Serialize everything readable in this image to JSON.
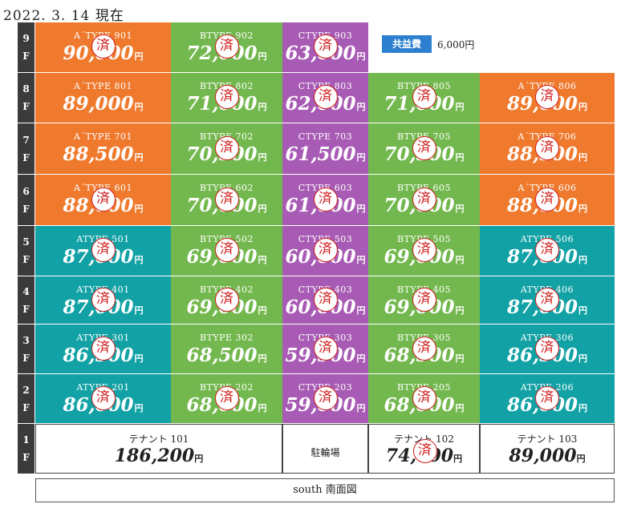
{
  "date_label": "2022. 3. 14 現在",
  "kyoeki": {
    "label": "共益費",
    "value": "6,000円"
  },
  "stamp_char": "済",
  "yen": "円",
  "floors": [
    {
      "label": [
        "9",
        "F"
      ],
      "units": [
        {
          "type": "A´TYPE 901",
          "price": "90,000",
          "color": "orange",
          "col": 0,
          "contracted": true
        },
        {
          "type": "BTYPE 902",
          "price": "72,000",
          "color": "green",
          "col": 1,
          "contracted": true
        },
        {
          "type": "CTYPE 903",
          "price": "63,000",
          "color": "purple",
          "col": 2,
          "contracted": true
        }
      ]
    },
    {
      "label": [
        "8",
        "F"
      ],
      "units": [
        {
          "type": "A´TYPE 801",
          "price": "89,000",
          "color": "orange",
          "col": 0,
          "contracted": false
        },
        {
          "type": "BTYPE 802",
          "price": "71,000",
          "color": "green",
          "col": 1,
          "contracted": true
        },
        {
          "type": "CTYPE 803",
          "price": "62,000",
          "color": "purple",
          "col": 2,
          "contracted": true
        },
        {
          "type": "BTYPE 805",
          "price": "71,000",
          "color": "green",
          "col": 3,
          "contracted": true
        },
        {
          "type": "A´TYPE 806",
          "price": "89,000",
          "color": "orange",
          "col": 4,
          "contracted": true
        }
      ]
    },
    {
      "label": [
        "7",
        "F"
      ],
      "units": [
        {
          "type": "A´TYPE 701",
          "price": "88,500",
          "color": "orange",
          "col": 0,
          "contracted": false
        },
        {
          "type": "BTYPE 702",
          "price": "70,500",
          "color": "green",
          "col": 1,
          "contracted": true
        },
        {
          "type": "CTYPE 703",
          "price": "61,500",
          "color": "purple",
          "col": 2,
          "contracted": false
        },
        {
          "type": "BTYPE 705",
          "price": "70,500",
          "color": "green",
          "col": 3,
          "contracted": true
        },
        {
          "type": "A´TYPE 706",
          "price": "88,500",
          "color": "orange",
          "col": 4,
          "contracted": true
        }
      ]
    },
    {
      "label": [
        "6",
        "F"
      ],
      "units": [
        {
          "type": "A´TYPE 601",
          "price": "88,000",
          "color": "orange",
          "col": 0,
          "contracted": true
        },
        {
          "type": "BTYPE 602",
          "price": "70,000",
          "color": "green",
          "col": 1,
          "contracted": true
        },
        {
          "type": "CTYPE 603",
          "price": "61,000",
          "color": "purple",
          "col": 2,
          "contracted": true
        },
        {
          "type": "BTYPE 605",
          "price": "70,000",
          "color": "green",
          "col": 3,
          "contracted": true
        },
        {
          "type": "A´TYPE 606",
          "price": "88,000",
          "color": "orange",
          "col": 4,
          "contracted": true
        }
      ]
    },
    {
      "label": [
        "5",
        "F"
      ],
      "units": [
        {
          "type": "ATYPE 501",
          "price": "87,000",
          "color": "teal",
          "col": 0,
          "contracted": true
        },
        {
          "type": "BTYPE 502",
          "price": "69,000",
          "color": "green",
          "col": 1,
          "contracted": true
        },
        {
          "type": "CTYPE 503",
          "price": "60,000",
          "color": "purple",
          "col": 2,
          "contracted": true
        },
        {
          "type": "BTYPE 505",
          "price": "69,000",
          "color": "green",
          "col": 3,
          "contracted": true
        },
        {
          "type": "ATYPE 506",
          "price": "87,000",
          "color": "teal",
          "col": 4,
          "contracted": true
        }
      ]
    },
    {
      "label": [
        "4",
        "F"
      ],
      "units": [
        {
          "type": "ATYPE 401",
          "price": "87,000",
          "color": "teal",
          "col": 0,
          "contracted": true
        },
        {
          "type": "BTYPE 402",
          "price": "69,000",
          "color": "green",
          "col": 1,
          "contracted": true
        },
        {
          "type": "CTYPE 403",
          "price": "60,000",
          "color": "purple",
          "col": 2,
          "contracted": true
        },
        {
          "type": "BTYPE 405",
          "price": "69,000",
          "color": "green",
          "col": 3,
          "contracted": true
        },
        {
          "type": "ATYPE 406",
          "price": "87,000",
          "color": "teal",
          "col": 4,
          "contracted": true
        }
      ]
    },
    {
      "label": [
        "3",
        "F"
      ],
      "units": [
        {
          "type": "ATYPE 301",
          "price": "86,500",
          "color": "teal",
          "col": 0,
          "contracted": true
        },
        {
          "type": "BTYPE 302",
          "price": "68,500",
          "color": "green",
          "col": 1,
          "contracted": false
        },
        {
          "type": "CTYPE 303",
          "price": "59,500",
          "color": "purple",
          "col": 2,
          "contracted": true
        },
        {
          "type": "BTYPE 305",
          "price": "68,500",
          "color": "green",
          "col": 3,
          "contracted": true
        },
        {
          "type": "ATYPE 306",
          "price": "86,500",
          "color": "teal",
          "col": 4,
          "contracted": true
        }
      ]
    },
    {
      "label": [
        "2",
        "F"
      ],
      "units": [
        {
          "type": "ATYPE 201",
          "price": "86,000",
          "color": "teal",
          "col": 0,
          "contracted": true
        },
        {
          "type": "BTYPE 202",
          "price": "68,000",
          "color": "green",
          "col": 1,
          "contracted": true
        },
        {
          "type": "CTYPE 203",
          "price": "59,000",
          "color": "purple",
          "col": 2,
          "contracted": true
        },
        {
          "type": "BTYPE 205",
          "price": "68,000",
          "color": "green",
          "col": 3,
          "contracted": true
        },
        {
          "type": "ATYPE 206",
          "price": "86,000",
          "color": "teal",
          "col": 4,
          "contracted": true
        }
      ]
    }
  ],
  "ground_floor": {
    "label": [
      "1",
      "F"
    ],
    "tenants": [
      {
        "name": "テナント 101",
        "price": "186,200",
        "contracted": false
      },
      {
        "name": "駐輪場",
        "price": "",
        "contracted": false
      },
      {
        "name": "テナント 102",
        "price": "74,000",
        "contracted": true
      },
      {
        "name": "テナント 103",
        "price": "89,000",
        "contracted": false
      }
    ]
  },
  "south_label": "south 南面図"
}
